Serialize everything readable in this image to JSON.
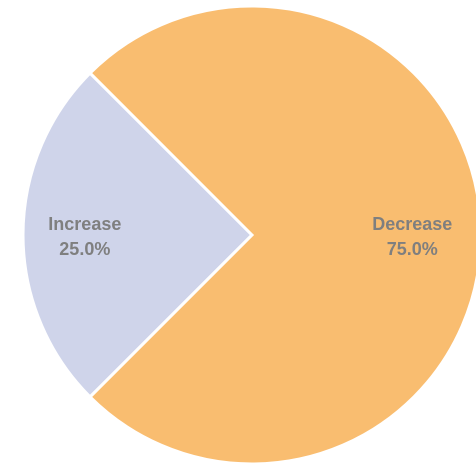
{
  "chart_data": {
    "type": "pie",
    "title": "",
    "slices": [
      {
        "label": "Increase",
        "value": 25.0,
        "percent_label": "25.0%",
        "color": "#cfd4ea"
      },
      {
        "label": "Decrease",
        "value": 75.0,
        "percent_label": "75.0%",
        "color": "#f9bd70"
      }
    ],
    "legend": "none",
    "label_color": "#7f7f7f",
    "separator_color": "#ffffff"
  }
}
